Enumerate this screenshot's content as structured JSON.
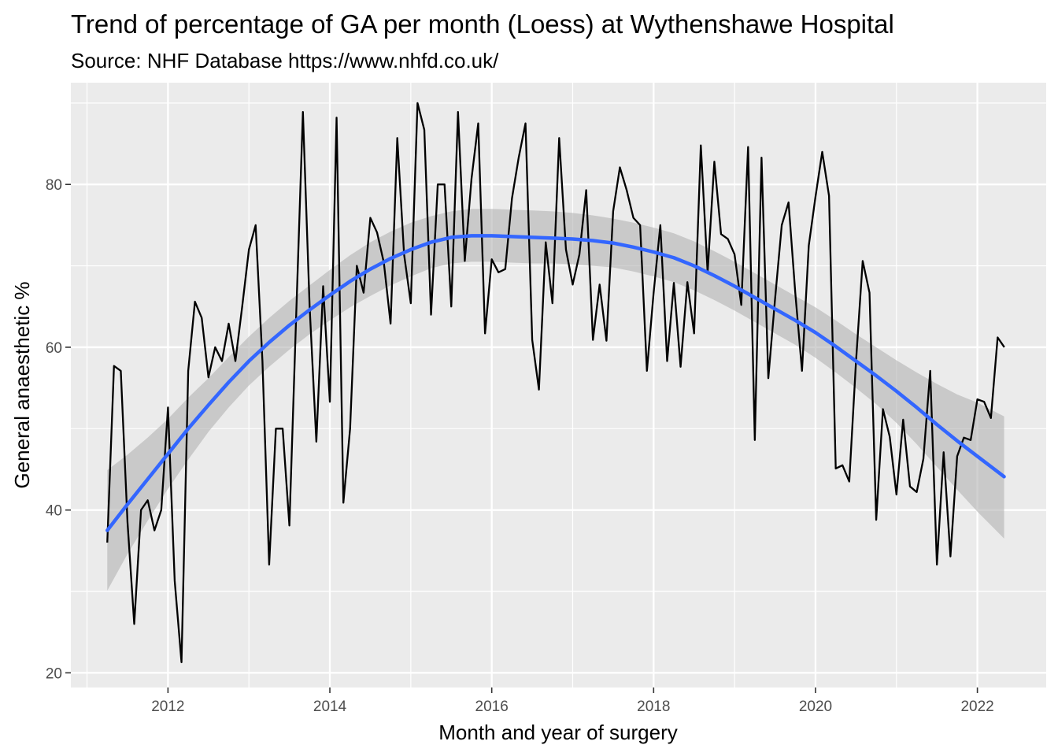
{
  "chart_data": {
    "type": "line",
    "title": "Trend of percentage of GA per month (Loess) at Wythenshawe Hospital",
    "subtitle": "Source: NHF Database https://www.nhfd.co.uk/",
    "xlabel": "Month and year of surgery",
    "ylabel": "General anaesthetic %",
    "xlim": [
      2010.8,
      2022.85
    ],
    "ylim": [
      18.2,
      92.5
    ],
    "x_ticks": [
      {
        "value": 2012,
        "label": "2012"
      },
      {
        "value": 2014,
        "label": "2014"
      },
      {
        "value": 2016,
        "label": "2016"
      },
      {
        "value": 2018,
        "label": "2018"
      },
      {
        "value": 2020,
        "label": "2020"
      },
      {
        "value": 2022,
        "label": "2022"
      }
    ],
    "y_ticks": [
      {
        "value": 20,
        "label": "20"
      },
      {
        "value": 40,
        "label": "40"
      },
      {
        "value": 60,
        "label": "60"
      },
      {
        "value": 80,
        "label": "80"
      }
    ],
    "grid": true,
    "colors": {
      "panel_background": "#ebebeb",
      "grid": "#ffffff",
      "observed_line": "#000000",
      "loess_line": "#3366ff",
      "confidence_band": "#b3b3b3"
    },
    "series": [
      {
        "kind": "observed",
        "x": [
          2011.25,
          2011.333,
          2011.417,
          2011.5,
          2011.583,
          2011.667,
          2011.75,
          2011.833,
          2011.917,
          2012.0,
          2012.083,
          2012.167,
          2012.25,
          2012.333,
          2012.417,
          2012.5,
          2012.583,
          2012.667,
          2012.75,
          2012.833,
          2012.917,
          2013.0,
          2013.083,
          2013.167,
          2013.25,
          2013.333,
          2013.417,
          2013.5,
          2013.583,
          2013.667,
          2013.75,
          2013.833,
          2013.917,
          2014.0,
          2014.083,
          2014.167,
          2014.25,
          2014.333,
          2014.417,
          2014.5,
          2014.583,
          2014.667,
          2014.75,
          2014.833,
          2014.917,
          2015.0,
          2015.083,
          2015.167,
          2015.25,
          2015.333,
          2015.417,
          2015.5,
          2015.583,
          2015.667,
          2015.75,
          2015.833,
          2015.917,
          2016.0,
          2016.083,
          2016.167,
          2016.25,
          2016.333,
          2016.417,
          2016.5,
          2016.583,
          2016.667,
          2016.75,
          2016.833,
          2016.917,
          2017.0,
          2017.083,
          2017.167,
          2017.25,
          2017.333,
          2017.417,
          2017.5,
          2017.583,
          2017.667,
          2017.75,
          2017.833,
          2017.917,
          2018.0,
          2018.083,
          2018.167,
          2018.25,
          2018.333,
          2018.417,
          2018.5,
          2018.583,
          2018.667,
          2018.75,
          2018.833,
          2018.917,
          2019.0,
          2019.083,
          2019.167,
          2019.25,
          2019.333,
          2019.417,
          2019.5,
          2019.583,
          2019.667,
          2019.75,
          2019.833,
          2019.917,
          2020.0,
          2020.083,
          2020.167,
          2020.25,
          2020.333,
          2020.417,
          2020.5,
          2020.583,
          2020.667,
          2020.75,
          2020.833,
          2020.917,
          2021.0,
          2021.083,
          2021.167,
          2021.25,
          2021.333,
          2021.417,
          2021.5,
          2021.583,
          2021.667,
          2021.75,
          2021.833,
          2021.917,
          2022.0,
          2022.083,
          2022.167,
          2022.25,
          2022.333
        ],
        "y": [
          36.0,
          57.7,
          57.1,
          38.5,
          26.0,
          40.0,
          41.2,
          37.5,
          40.0,
          52.6,
          31.3,
          21.3,
          57.1,
          65.6,
          63.6,
          56.3,
          60.0,
          58.3,
          62.9,
          58.3,
          65.0,
          72.0,
          75.0,
          58.3,
          33.3,
          50.0,
          50.0,
          38.1,
          63.6,
          88.9,
          65.0,
          48.4,
          67.5,
          53.3,
          88.2,
          40.9,
          50.0,
          70.0,
          66.7,
          75.9,
          74.1,
          70.4,
          62.9,
          85.7,
          71.4,
          65.4,
          90.0,
          86.7,
          64.0,
          80.0,
          80.0,
          65.0,
          88.9,
          70.6,
          80.7,
          87.5,
          61.7,
          70.8,
          69.2,
          69.6,
          78.3,
          83.3,
          87.5,
          60.9,
          54.8,
          72.9,
          65.4,
          85.7,
          72.0,
          67.7,
          71.4,
          79.3,
          60.9,
          67.7,
          60.8,
          76.7,
          82.1,
          79.3,
          75.9,
          75.0,
          57.1,
          66.7,
          75.0,
          58.3,
          67.9,
          57.6,
          68.0,
          61.7,
          84.8,
          69.2,
          82.8,
          73.9,
          73.3,
          71.4,
          65.2,
          84.6,
          48.6,
          83.3,
          56.2,
          65.9,
          75.0,
          77.8,
          66.7,
          57.1,
          72.5,
          78.5,
          84.0,
          78.6,
          45.1,
          45.5,
          43.5,
          58.2,
          70.6,
          66.7,
          38.8,
          52.4,
          49.0,
          41.9,
          51.1,
          42.9,
          42.2,
          46.3,
          57.1,
          33.3,
          47.1,
          34.3,
          46.6,
          48.9,
          48.6,
          53.6,
          53.3,
          51.3,
          61.2,
          60.0
        ]
      },
      {
        "kind": "loess",
        "x": [
          2011.25,
          2011.5,
          2011.75,
          2012.0,
          2012.25,
          2012.5,
          2012.75,
          2013.0,
          2013.25,
          2013.5,
          2013.75,
          2014.0,
          2014.25,
          2014.5,
          2014.75,
          2015.0,
          2015.25,
          2015.5,
          2015.75,
          2016.0,
          2016.25,
          2016.5,
          2016.75,
          2017.0,
          2017.25,
          2017.5,
          2017.75,
          2018.0,
          2018.25,
          2018.5,
          2018.75,
          2019.0,
          2019.25,
          2019.5,
          2019.75,
          2020.0,
          2020.25,
          2020.5,
          2020.75,
          2021.0,
          2021.25,
          2021.5,
          2021.75,
          2022.0,
          2022.33
        ],
        "y": [
          37.5,
          40.7,
          43.8,
          46.9,
          50.0,
          52.9,
          55.7,
          58.3,
          60.6,
          62.7,
          64.6,
          66.4,
          68.1,
          69.6,
          70.9,
          72.0,
          72.9,
          73.5,
          73.7,
          73.7,
          73.6,
          73.5,
          73.4,
          73.3,
          73.1,
          72.8,
          72.3,
          71.7,
          71.0,
          70.0,
          68.8,
          67.5,
          66.1,
          64.7,
          63.3,
          61.8,
          60.1,
          58.3,
          56.5,
          54.6,
          52.6,
          50.5,
          48.5,
          46.6,
          44.1
        ],
        "lower": [
          30.1,
          34.6,
          38.7,
          42.6,
          46.2,
          49.6,
          52.6,
          55.3,
          57.6,
          59.7,
          61.6,
          63.3,
          64.9,
          66.3,
          67.6,
          68.7,
          69.7,
          70.3,
          70.5,
          70.5,
          70.4,
          70.3,
          70.3,
          70.2,
          70.0,
          69.8,
          69.3,
          68.7,
          68.0,
          67.0,
          65.8,
          64.5,
          63.1,
          61.7,
          60.3,
          58.7,
          56.9,
          55.0,
          53.0,
          50.7,
          48.1,
          45.3,
          42.5,
          39.8,
          36.5
        ],
        "upper": [
          44.9,
          46.8,
          48.9,
          51.2,
          53.8,
          56.2,
          58.8,
          61.3,
          63.6,
          65.7,
          67.6,
          69.5,
          71.3,
          72.9,
          74.2,
          75.3,
          76.1,
          76.7,
          77.0,
          77.0,
          76.9,
          76.8,
          76.7,
          76.5,
          76.2,
          75.8,
          75.3,
          74.7,
          74.0,
          73.0,
          71.8,
          70.5,
          69.1,
          67.7,
          66.3,
          64.9,
          63.3,
          61.6,
          60.0,
          58.4,
          56.9,
          55.5,
          54.2,
          53.2,
          51.5
        ]
      }
    ]
  }
}
